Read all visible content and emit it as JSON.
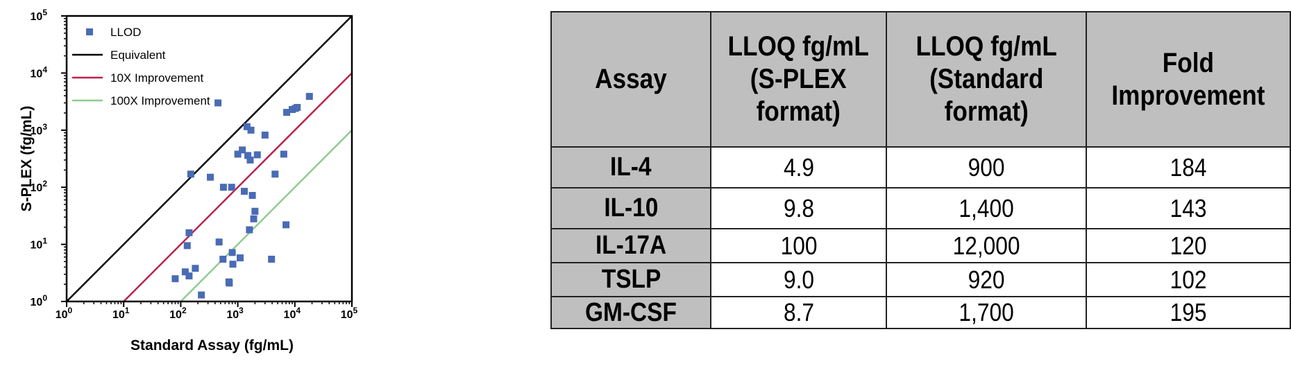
{
  "chart_data": {
    "type": "scatter",
    "xscale": "log",
    "yscale": "log",
    "xlim": [
      1,
      100000
    ],
    "ylim": [
      1,
      100000
    ],
    "xlabel": "Standard Assay (fg/mL)",
    "ylabel": "S-PLEX (fg/mL)",
    "grid": false,
    "legend_position": "top-left",
    "x_ticks": [
      {
        "value": 1,
        "base": "10",
        "exp": "0"
      },
      {
        "value": 10,
        "base": "10",
        "exp": "1"
      },
      {
        "value": 100,
        "base": "10",
        "exp": "2"
      },
      {
        "value": 1000,
        "base": "10",
        "exp": "3"
      },
      {
        "value": 10000,
        "base": "10",
        "exp": "4"
      },
      {
        "value": 100000,
        "base": "10",
        "exp": "5"
      }
    ],
    "y_ticks": [
      {
        "value": 1,
        "base": "10",
        "exp": "0"
      },
      {
        "value": 10,
        "base": "10",
        "exp": "1"
      },
      {
        "value": 100,
        "base": "10",
        "exp": "2"
      },
      {
        "value": 1000,
        "base": "10",
        "exp": "3"
      },
      {
        "value": 10000,
        "base": "10",
        "exp": "4"
      },
      {
        "value": 100000,
        "base": "10",
        "exp": "5"
      }
    ],
    "series": [
      {
        "name": "LLOD",
        "kind": "points",
        "color": "#4a6bb5",
        "points": [
          [
            80,
            2.5
          ],
          [
            120,
            3.3
          ],
          [
            140,
            2.8
          ],
          [
            180,
            3.8
          ],
          [
            230,
            1.3
          ],
          [
            130,
            9.5
          ],
          [
            140,
            16
          ],
          [
            150,
            170
          ],
          [
            330,
            150
          ],
          [
            450,
            3000
          ],
          [
            470,
            11
          ],
          [
            550,
            5.5
          ],
          [
            560,
            100
          ],
          [
            700,
            2.2
          ],
          [
            710,
            2.1
          ],
          [
            800,
            7.2
          ],
          [
            820,
            4.5
          ],
          [
            780,
            100
          ],
          [
            1000,
            380
          ],
          [
            1100,
            5.8
          ],
          [
            1200,
            450
          ],
          [
            1300,
            85
          ],
          [
            1450,
            1150
          ],
          [
            1500,
            360
          ],
          [
            1600,
            18
          ],
          [
            1650,
            300
          ],
          [
            1700,
            1000
          ],
          [
            1800,
            72
          ],
          [
            1900,
            28
          ],
          [
            2000,
            38
          ],
          [
            2200,
            370
          ],
          [
            3000,
            820
          ],
          [
            3900,
            5.5
          ],
          [
            4500,
            170
          ],
          [
            6400,
            380
          ],
          [
            7000,
            22
          ],
          [
            7200,
            2050
          ],
          [
            9000,
            2300
          ],
          [
            10200,
            2400
          ],
          [
            11000,
            2500
          ],
          [
            18000,
            3900
          ]
        ]
      },
      {
        "name": "Equivalent",
        "kind": "line",
        "color": "#000000",
        "points": [
          [
            1,
            1
          ],
          [
            100000,
            100000
          ]
        ]
      },
      {
        "name": "10X Improvement",
        "kind": "line",
        "color": "#c0204a",
        "points": [
          [
            10,
            1
          ],
          [
            100000,
            10000
          ]
        ]
      },
      {
        "name": "100X Improvement",
        "kind": "line",
        "color": "#8fcc8f",
        "points": [
          [
            100,
            1
          ],
          [
            100000,
            1000
          ]
        ]
      }
    ]
  },
  "table": {
    "headers": {
      "assay": "Assay",
      "splex": "LLOQ fg/mL (S-PLEX format)",
      "standard": "LLOQ fg/mL (Standard format)",
      "fold": "Fold Improvement"
    },
    "rows": [
      {
        "assay": "IL-4",
        "splex": "4.9",
        "standard": "900",
        "fold": "184"
      },
      {
        "assay": "IL-10",
        "splex": "9.8",
        "standard": "1,400",
        "fold": "143"
      },
      {
        "assay": "IL-17A",
        "splex": "100",
        "standard": "12,000",
        "fold": "120"
      },
      {
        "assay": "TSLP",
        "splex": "9.0",
        "standard": "920",
        "fold": "102"
      },
      {
        "assay": "GM-CSF",
        "splex": "8.7",
        "standard": "1,700",
        "fold": "195"
      }
    ]
  }
}
